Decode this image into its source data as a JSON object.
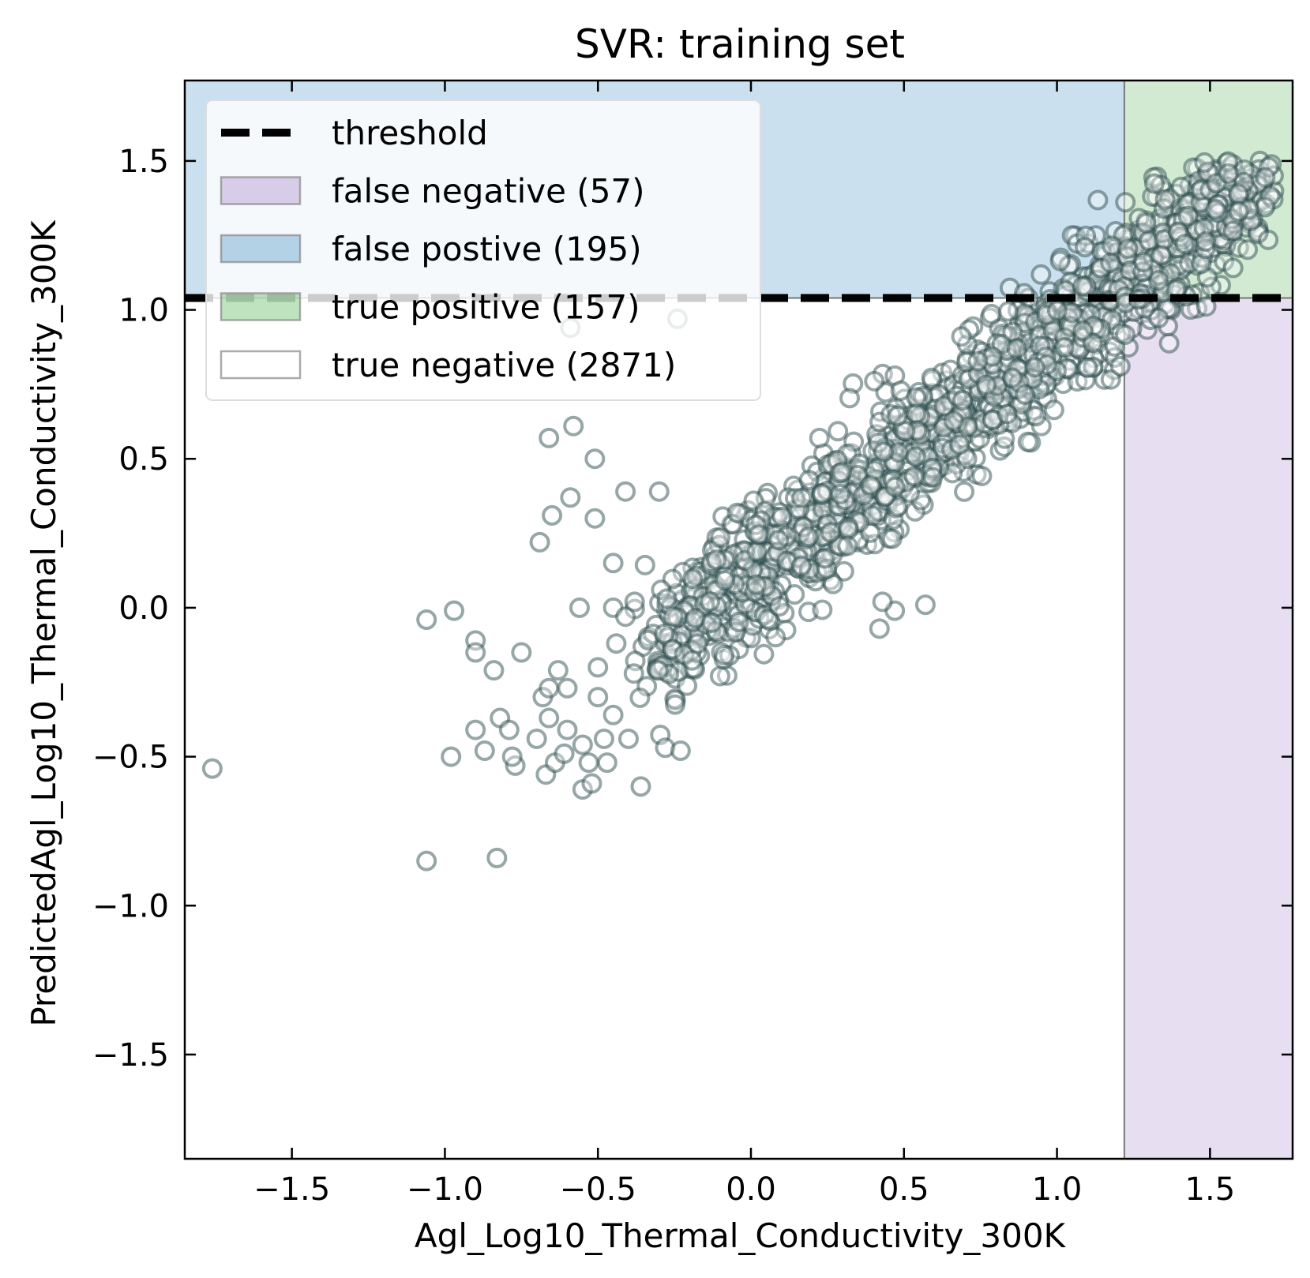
{
  "chart_data": {
    "type": "scatter",
    "title": "SVR: training set",
    "xlabel": "Agl_Log10_Thermal_Conductivity_300K",
    "ylabel": "PredictedAgl_Log10_Thermal_Conductivity_300K",
    "xlim": [
      -1.85,
      1.77
    ],
    "ylim": [
      -1.85,
      1.77
    ],
    "x_ticks": [
      -1.5,
      -1.0,
      -0.5,
      0.0,
      0.5,
      1.0,
      1.5
    ],
    "y_ticks": [
      -1.5,
      -1.0,
      -0.5,
      0.0,
      0.5,
      1.0,
      1.5
    ],
    "x_tick_labels": [
      "−1.5",
      "−1.0",
      "−0.5",
      "0.0",
      "0.5",
      "1.0",
      "1.5"
    ],
    "y_tick_labels": [
      "−1.5",
      "−1.0",
      "−0.5",
      "0.0",
      "0.5",
      "1.0",
      "1.5"
    ],
    "threshold_x": 1.22,
    "threshold_y": 1.04,
    "grid": false,
    "legend_position": "top-left",
    "colors": {
      "points": "#2f4f4f",
      "false_negative": "#9467bd",
      "false_positive": "#1f77b4",
      "true_positive": "#2ca02c",
      "threshold": "#000000"
    },
    "legend": [
      {
        "key": "threshold",
        "label": "threshold"
      },
      {
        "key": "false_negative",
        "label": "false negative (57)"
      },
      {
        "key": "false_positive",
        "label": "false postive (195)"
      },
      {
        "key": "true_positive",
        "label": "true positive (157)"
      },
      {
        "key": "true_negative",
        "label": "true negative (2871)"
      }
    ],
    "series": [
      {
        "points": [
          [
            -1.76,
            -0.54
          ],
          [
            -1.06,
            -0.85
          ],
          [
            -0.83,
            -0.84
          ],
          [
            -1.06,
            -0.04
          ],
          [
            -0.97,
            -0.01
          ],
          [
            -0.9,
            -0.11
          ],
          [
            -0.9,
            -0.15
          ],
          [
            -0.84,
            -0.21
          ],
          [
            -0.75,
            -0.15
          ],
          [
            -0.98,
            -0.5
          ],
          [
            -0.9,
            -0.41
          ],
          [
            -0.87,
            -0.48
          ],
          [
            -0.82,
            -0.37
          ],
          [
            -0.79,
            -0.41
          ],
          [
            -0.77,
            -0.53
          ],
          [
            -0.78,
            -0.5
          ],
          [
            -0.7,
            -0.44
          ],
          [
            -0.66,
            -0.37
          ],
          [
            -0.68,
            -0.3
          ],
          [
            -0.66,
            -0.27
          ],
          [
            -0.6,
            -0.27
          ],
          [
            -0.63,
            -0.21
          ],
          [
            -0.67,
            -0.56
          ],
          [
            -0.64,
            -0.52
          ],
          [
            -0.61,
            -0.49
          ],
          [
            -0.55,
            -0.61
          ],
          [
            -0.52,
            -0.59
          ],
          [
            -0.47,
            -0.52
          ],
          [
            -0.36,
            -0.6
          ],
          [
            -0.69,
            0.22
          ],
          [
            -0.65,
            0.31
          ],
          [
            -0.59,
            0.37
          ],
          [
            -0.51,
            0.3
          ],
          [
            -0.66,
            0.57
          ],
          [
            -0.58,
            0.61
          ],
          [
            -0.51,
            0.5
          ],
          [
            -0.59,
            0.94
          ],
          [
            -0.45,
            0.15
          ],
          [
            -0.41,
            0.39
          ],
          [
            -0.3,
            0.39
          ],
          [
            -0.45,
            0.0
          ],
          [
            -0.56,
            0.0
          ],
          [
            -0.41,
            -0.03
          ],
          [
            -0.38,
            0.02
          ],
          [
            -0.28,
            -0.47
          ],
          [
            -0.23,
            -0.48
          ],
          [
            0.57,
            0.01
          ],
          [
            0.47,
            -0.01
          ],
          [
            0.42,
            -0.07
          ],
          [
            -0.24,
            0.97
          ],
          [
            0.43,
            0.02
          ],
          [
            -0.6,
            -0.41
          ],
          [
            -0.55,
            -0.46
          ],
          [
            -0.5,
            -0.3
          ],
          [
            -0.45,
            -0.36
          ],
          [
            -0.48,
            -0.44
          ],
          [
            -0.53,
            -0.52
          ],
          [
            -0.4,
            -0.44
          ],
          [
            -0.5,
            -0.2
          ],
          [
            -0.44,
            -0.12
          ]
        ]
      }
    ]
  }
}
